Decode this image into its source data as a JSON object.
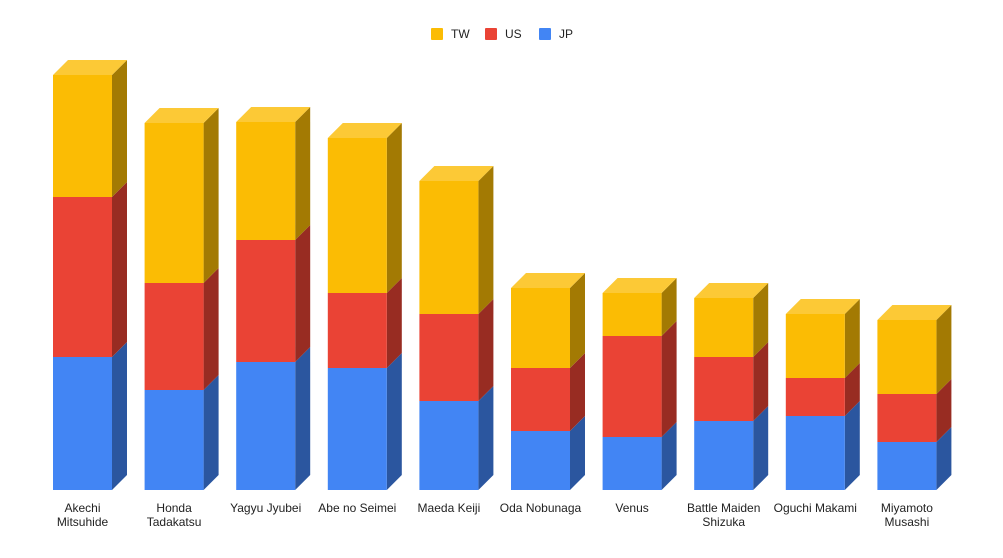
{
  "chart_data": {
    "type": "bar",
    "stacked": true,
    "three_d": true,
    "categories": [
      [
        "Akechi",
        "Mitsuhide"
      ],
      [
        "Honda",
        "Tadakatsu"
      ],
      [
        "Yagyu Jyubei"
      ],
      [
        "Abe no Seimei"
      ],
      [
        "Maeda Keiji"
      ],
      [
        "Oda Nobunaga"
      ],
      [
        "Venus"
      ],
      [
        "Battle Maiden",
        "Shizuka"
      ],
      [
        "Oguchi Makami"
      ],
      [
        "Miyamoto",
        "Musashi"
      ]
    ],
    "series": [
      {
        "name": "JP",
        "color": "#4285f4",
        "values": [
          133,
          100,
          128,
          122,
          89,
          59,
          53,
          69,
          74,
          48
        ]
      },
      {
        "name": "US",
        "color": "#ea4335",
        "values": [
          160,
          107,
          122,
          75,
          87,
          63,
          101,
          64,
          38,
          48
        ]
      },
      {
        "name": "TW",
        "color": "#fbbc04",
        "values": [
          122,
          160,
          118,
          155,
          133,
          80,
          43,
          59,
          64,
          74
        ]
      }
    ],
    "legend_order": [
      "TW",
      "US",
      "JP"
    ],
    "legend_position": "top",
    "ylim": [
      0,
      415
    ],
    "grid": false,
    "title": "",
    "xlabel": "",
    "ylabel": ""
  }
}
